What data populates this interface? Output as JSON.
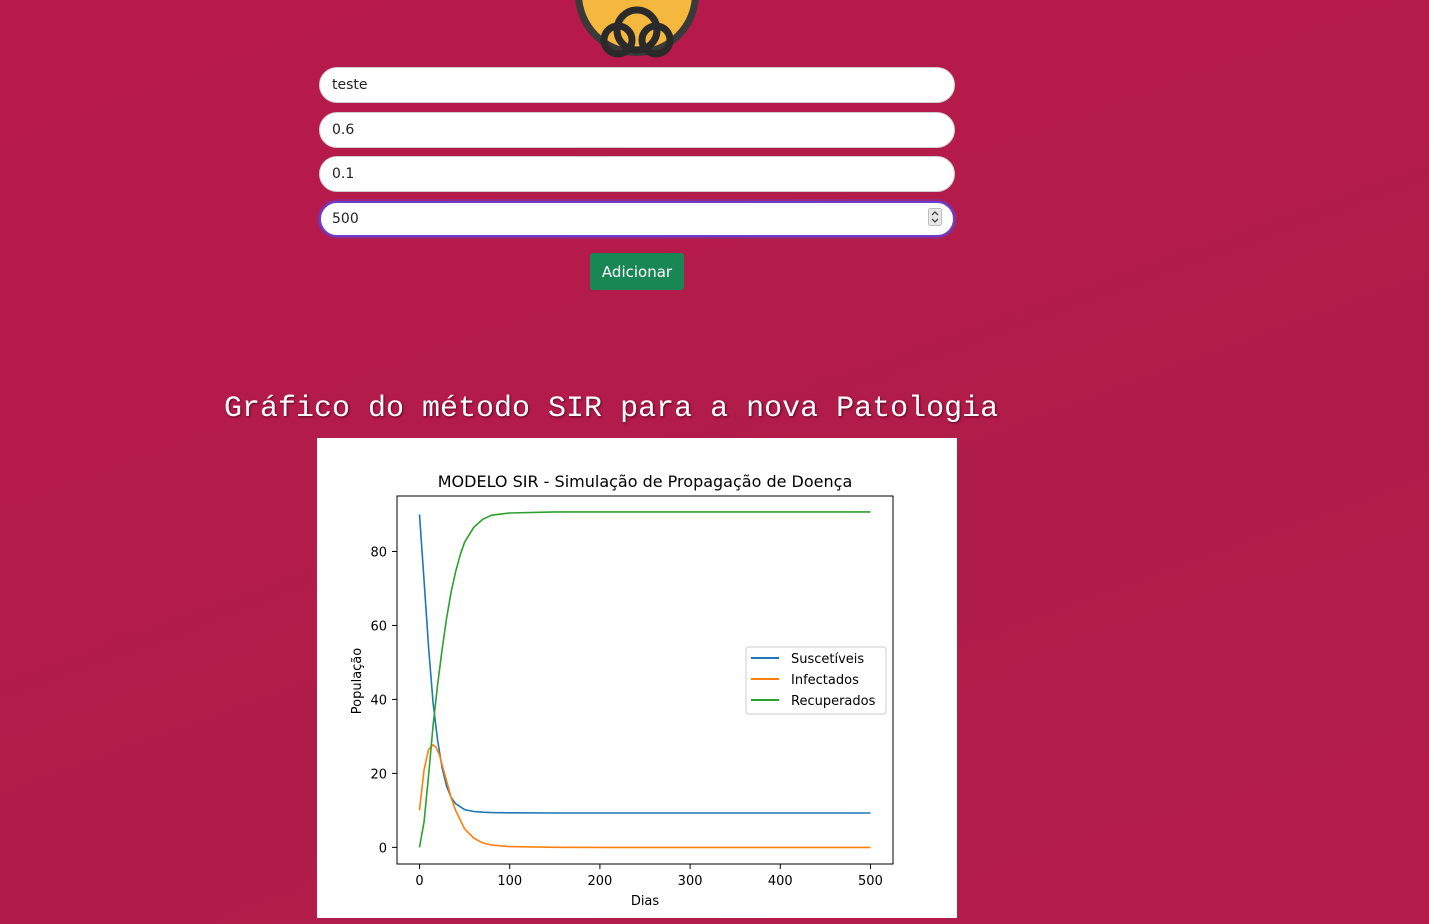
{
  "form": {
    "name_value": "teste",
    "beta_value": "0.6",
    "gamma_value": "0.1",
    "days_value": "500",
    "submit_label": "Adicionar"
  },
  "section": {
    "heading": "Gráfico do método SIR para a nova Patologia"
  },
  "colors": {
    "background": "#b01c49",
    "button": "#198754",
    "suscetiveis": "#1f77b4",
    "infectados": "#ff7f0e",
    "recuperados": "#2ca02c"
  },
  "icons": {
    "logo": "biohazard-icon"
  },
  "chart_data": {
    "type": "line",
    "title": "MODELO SIR - Simulação de Propagação de Doença",
    "xlabel": "Dias",
    "ylabel": "População",
    "xlim": [
      -25,
      525
    ],
    "ylim": [
      -4.5,
      95
    ],
    "xticks": [
      0,
      100,
      200,
      300,
      400,
      500
    ],
    "yticks": [
      0,
      20,
      40,
      60,
      80
    ],
    "legend_position": "center-right",
    "grid": false,
    "series": [
      {
        "name": "Suscetíveis",
        "x": [
          0,
          5,
          10,
          15,
          20,
          25,
          30,
          35,
          40,
          50,
          60,
          70,
          80,
          100,
          150,
          200,
          300,
          400,
          500
        ],
        "y": [
          90,
          72,
          54,
          39,
          29,
          21.5,
          16.5,
          13.5,
          11.8,
          10.2,
          9.7,
          9.5,
          9.4,
          9.35,
          9.3,
          9.3,
          9.3,
          9.3,
          9.3
        ]
      },
      {
        "name": "Infectados",
        "x": [
          0,
          5,
          10,
          15,
          18,
          22,
          26,
          30,
          35,
          40,
          50,
          60,
          70,
          80,
          100,
          150,
          200,
          300,
          400,
          500
        ],
        "y": [
          10,
          21,
          26.5,
          27.7,
          27.2,
          25,
          21.5,
          18,
          13.5,
          10,
          5,
          2.5,
          1.2,
          0.6,
          0.2,
          0.02,
          0,
          0,
          0,
          0
        ]
      },
      {
        "name": "Recuperados",
        "x": [
          0,
          5,
          10,
          15,
          20,
          25,
          30,
          35,
          40,
          45,
          50,
          60,
          70,
          80,
          100,
          150,
          200,
          300,
          400,
          500
        ],
        "y": [
          0,
          7,
          19.5,
          33,
          44,
          53.5,
          62,
          69,
          74.5,
          79,
          82.5,
          86.5,
          88.7,
          89.8,
          90.4,
          90.7,
          90.7,
          90.7,
          90.7,
          90.7
        ]
      }
    ]
  }
}
